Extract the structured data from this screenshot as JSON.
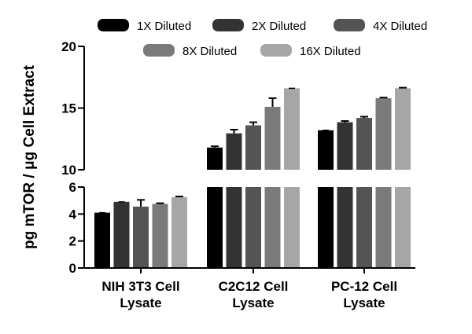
{
  "chart_data": {
    "type": "bar",
    "title": "",
    "xlabel": "",
    "ylabel": "pg mTOR / μg Cell Extract",
    "categories": [
      [
        "NIH 3T3 Cell",
        "Lysate"
      ],
      [
        "C2C12 Cell",
        "Lysate"
      ],
      [
        "PC-12 Cell",
        "Lysate"
      ]
    ],
    "series": [
      {
        "name": "1X Diluted",
        "color": "#000000",
        "values": [
          4.1,
          11.8,
          13.2
        ],
        "errors": [
          0.0,
          0.1,
          0.0
        ]
      },
      {
        "name": "2X Diluted",
        "color": "#333333",
        "values": [
          4.9,
          12.95,
          13.85
        ],
        "errors": [
          0.0,
          0.3,
          0.1
        ]
      },
      {
        "name": "4X Diluted",
        "color": "#545454",
        "values": [
          4.55,
          13.6,
          14.2
        ],
        "errors": [
          0.5,
          0.25,
          0.1
        ]
      },
      {
        "name": "8X Diluted",
        "color": "#7a7a7a",
        "values": [
          4.75,
          15.1,
          15.8
        ],
        "errors": [
          0.05,
          0.7,
          0.05
        ]
      },
      {
        "name": "16X Diluted",
        "color": "#a6a6a6",
        "values": [
          5.25,
          16.6,
          16.6
        ],
        "errors": [
          0.05,
          0.0,
          0.05
        ]
      }
    ],
    "y_axis_segments": [
      {
        "range": [
          0,
          6
        ],
        "ticks": [
          0,
          2,
          4,
          6
        ]
      },
      {
        "range": [
          10,
          20
        ],
        "ticks": [
          10,
          15,
          20
        ]
      }
    ],
    "ylim": [
      0,
      20
    ],
    "legend_position": "top",
    "grid": false
  }
}
